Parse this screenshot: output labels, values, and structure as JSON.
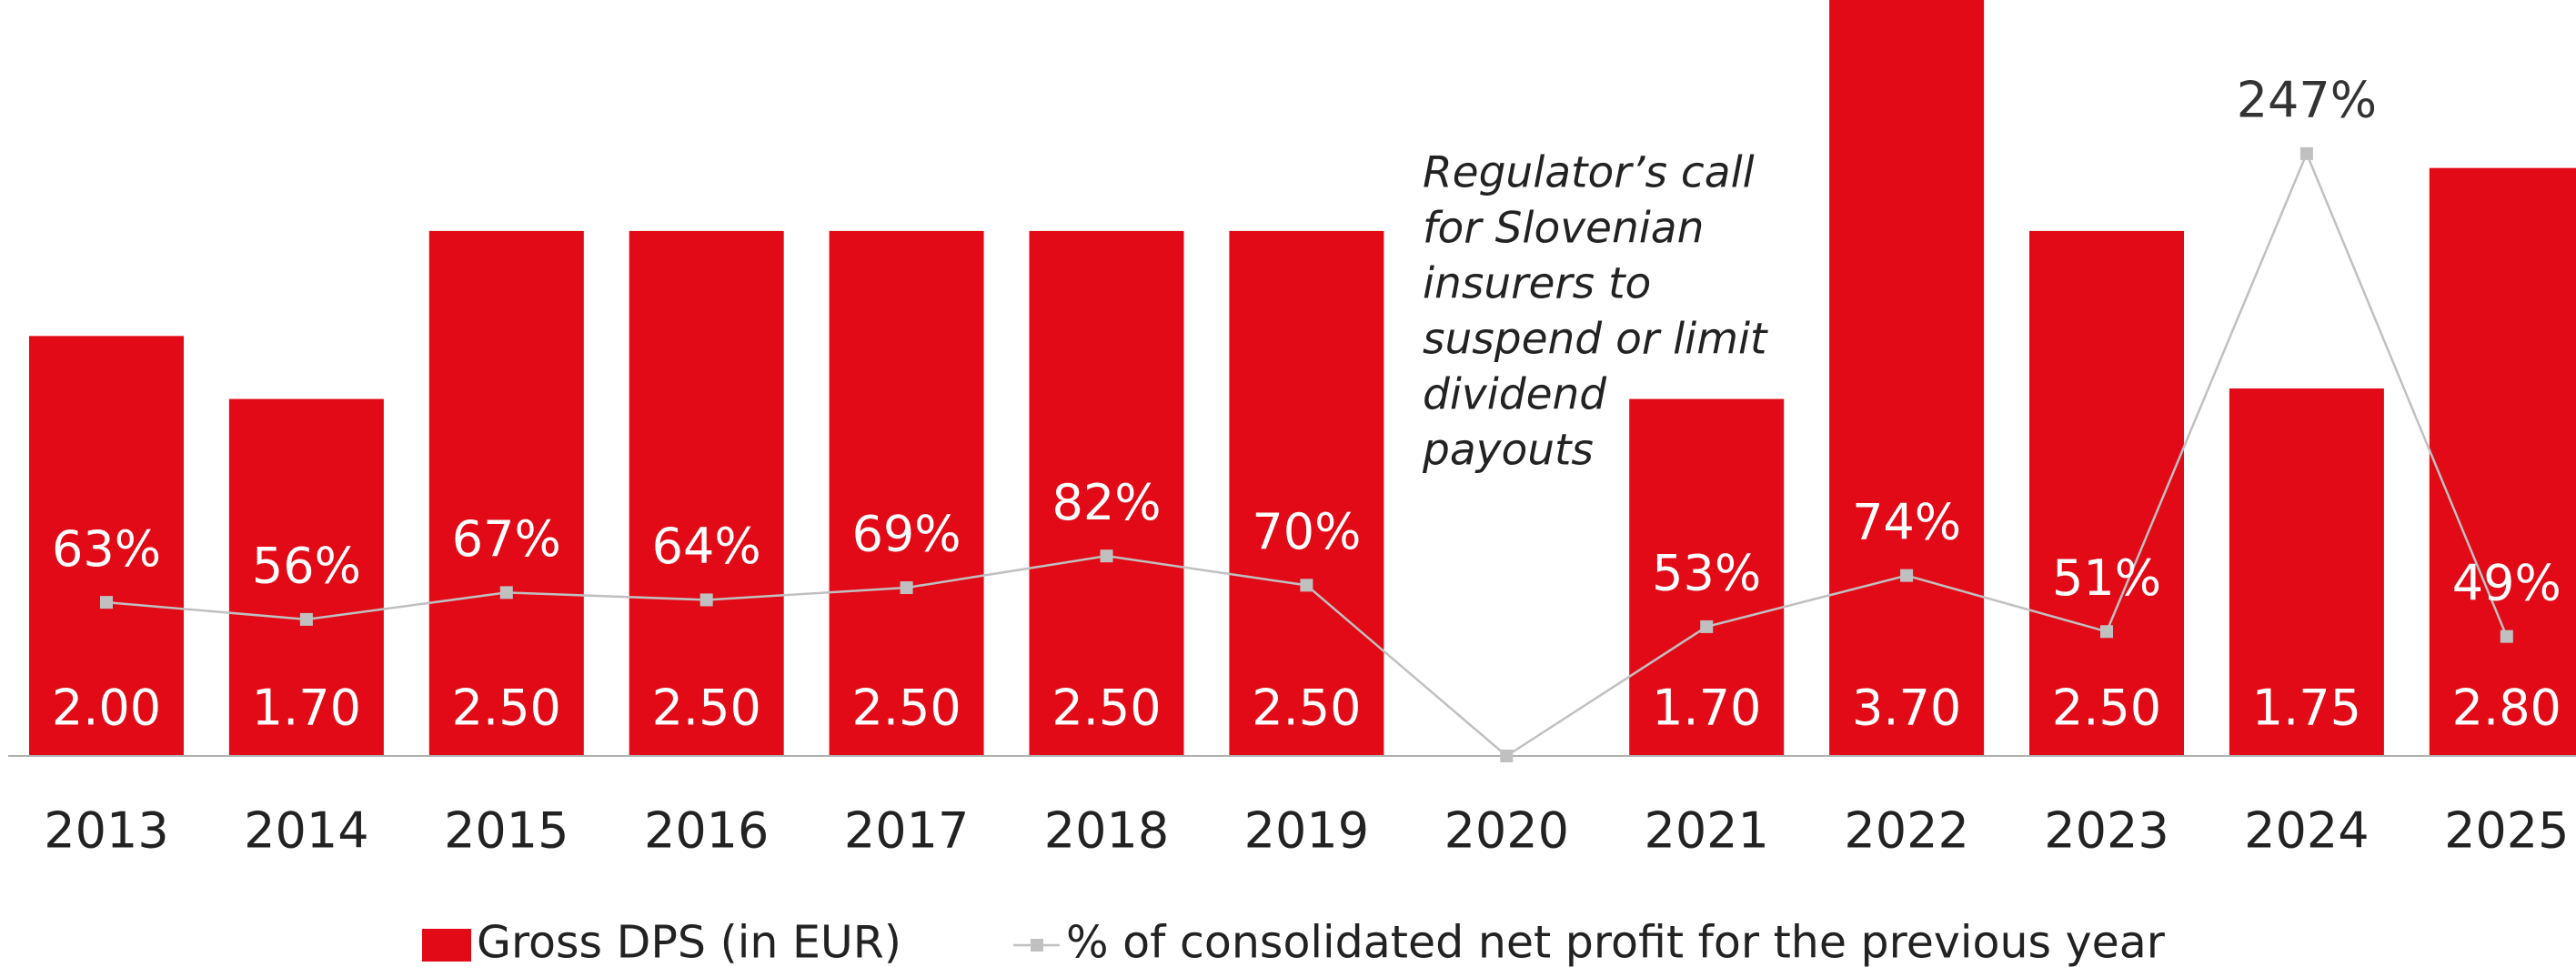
{
  "chart_data": {
    "type": "bar",
    "categories": [
      "2013",
      "2014",
      "2015",
      "2016",
      "2017",
      "2018",
      "2019",
      "2020",
      "2021",
      "2022",
      "2023",
      "2024",
      "2025"
    ],
    "series": [
      {
        "name": "Gross DPS (in EUR)",
        "type": "bar",
        "color": "#e20a17",
        "values": [
          2.0,
          1.7,
          2.5,
          2.5,
          2.5,
          2.5,
          2.5,
          null,
          1.7,
          3.7,
          2.5,
          1.75,
          2.8
        ],
        "value_labels": [
          "2.00",
          "1.70",
          "2.50",
          "2.50",
          "2.50",
          "2.50",
          "2.50",
          null,
          "1.70",
          "3.70",
          "2.50",
          "1.75",
          "2.80"
        ]
      },
      {
        "name": "% of consolidated net profit for the previous year",
        "type": "line",
        "axis": "y2",
        "color": "#c0c0c0",
        "values": [
          63,
          56,
          67,
          64,
          69,
          82,
          70,
          0,
          53,
          74,
          51,
          247,
          49
        ],
        "value_labels": [
          "63%",
          "56%",
          "67%",
          "64%",
          "69%",
          "82%",
          "70%",
          null,
          "53%",
          "74%",
          "51%",
          "247%",
          "49%"
        ]
      }
    ],
    "ylim": [
      0,
      3.6
    ],
    "y2lim": [
      0,
      310
    ],
    "annotation": [
      "Regulator’s call",
      "for Slovenian",
      "insurers to",
      "suspend or limit",
      "dividend",
      "payouts"
    ]
  }
}
